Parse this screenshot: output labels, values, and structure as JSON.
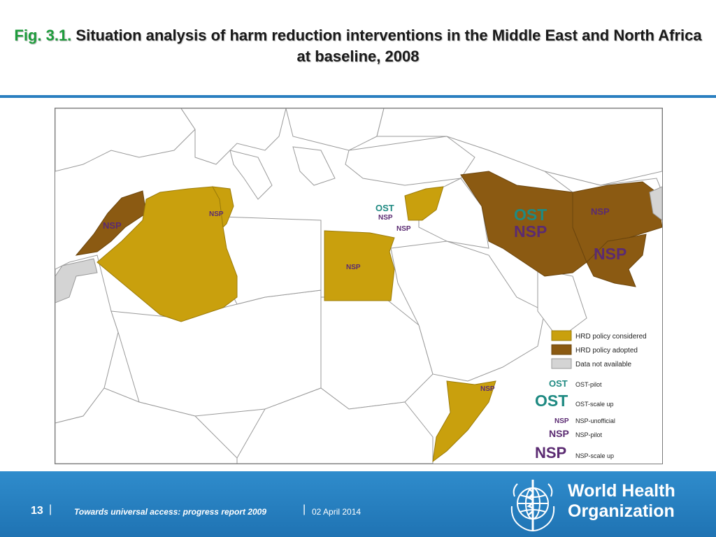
{
  "slide": {
    "title_fig": "Fig. 3.1.",
    "title_text": "Situation analysis of harm reduction interventions in the Middle East and North Africa at baseline, 2008"
  },
  "map": {
    "region_labels": {
      "morocco": "NSP",
      "algeria": "NSP",
      "egypt": "NSP",
      "lebanon_ost": "OST",
      "lebanon_nsp": "NSP",
      "jordan_nsp": "NSP",
      "iran_ost": "OST",
      "iran_nsp": "NSP",
      "afghanistan": "NSP",
      "pakistan": "NSP",
      "somalia": "NSP"
    },
    "legend": {
      "items": [
        {
          "label": "HRD policy considered",
          "color": "#c9a00d"
        },
        {
          "label": "HRD policy adopted",
          "color": "#8b5a12"
        },
        {
          "label": "Data not available",
          "color": "#d4d4d4"
        }
      ],
      "symbols": [
        {
          "symbol": "OST",
          "label": "OST-pilot",
          "color": "#1f8a82"
        },
        {
          "symbol": "OST",
          "label": "OST-scale up",
          "color": "#1f8a82"
        },
        {
          "symbol": "NSP",
          "label": "NSP-unofficial",
          "color": "#5b2b72"
        },
        {
          "symbol": "NSP",
          "label": "NSP-pilot",
          "color": "#5b2b72"
        },
        {
          "symbol": "NSP",
          "label": "NSP-scale up",
          "color": "#5b2b72"
        }
      ]
    },
    "colors": {
      "considered": "#c9a00d",
      "adopted": "#8b5a12",
      "no_data": "#d4d4d4",
      "ost_text": "#1f8a82",
      "nsp_text": "#5b2b72"
    }
  },
  "footer": {
    "page_number": "13",
    "report_title": "Towards universal access: progress report 2009",
    "date": "02 April 2014",
    "org_line1": "World Health",
    "org_line2": "Organization",
    "emblem_icon": "who-emblem-icon",
    "background": "#2a7fc0"
  }
}
